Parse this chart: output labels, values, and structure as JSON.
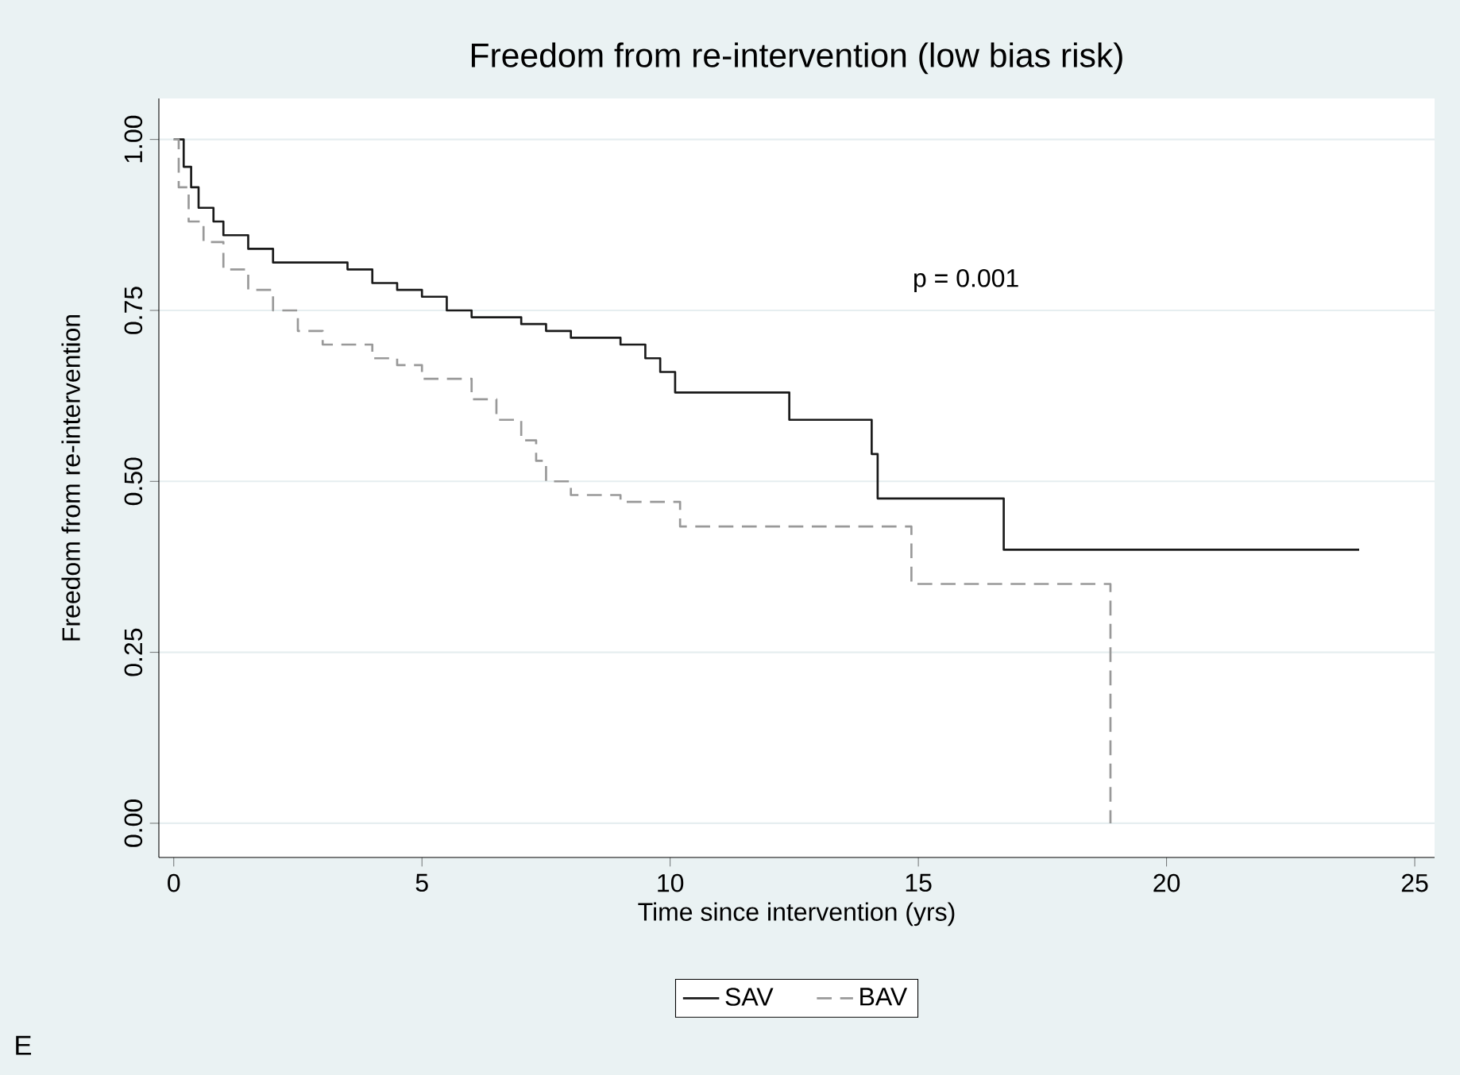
{
  "chart_data": {
    "type": "step",
    "title": "Freedom from re-intervention (low bias risk)",
    "xlabel": "Time since intervention (yrs)",
    "ylabel": "Freedom from re-intervention",
    "annotations": [
      "p = 0.001",
      "E"
    ],
    "xlim": [
      -0.3,
      25.4
    ],
    "ylim": [
      -0.05,
      1.06
    ],
    "xticks": [
      0,
      5,
      10,
      15,
      20,
      25
    ],
    "yticks": [
      {
        "value": 0,
        "label": "0.00"
      },
      {
        "value": 0.25,
        "label": "0.25"
      },
      {
        "value": 0.5,
        "label": "0.50"
      },
      {
        "value": 0.75,
        "label": "0.75"
      },
      {
        "value": 1,
        "label": "1.00"
      }
    ],
    "grid": "y",
    "legend": "bottom",
    "series": [
      {
        "name": "SAV",
        "color": "#1a1a1a",
        "line_style": "solid",
        "x": [
          0,
          0.2,
          0.35,
          0.5,
          0.8,
          1,
          1.5,
          2,
          3.5,
          4,
          4.5,
          5,
          5.5,
          6,
          7,
          7.5,
          8,
          9,
          9.5,
          9.8,
          10.1,
          12.4,
          14.06,
          14.18,
          16.72,
          23.88
        ],
        "values": [
          1,
          0.96,
          0.93,
          0.9,
          0.88,
          0.86,
          0.84,
          0.82,
          0.81,
          0.79,
          0.78,
          0.77,
          0.75,
          0.74,
          0.73,
          0.72,
          0.71,
          0.7,
          0.68,
          0.66,
          0.63,
          0.59,
          0.54,
          0.475,
          0.4,
          0.4
        ]
      },
      {
        "name": "BAV",
        "color": "#999999",
        "line_style": "dashed",
        "x": [
          0,
          0.1,
          0.3,
          0.6,
          1,
          1.5,
          2,
          2.5,
          3,
          4,
          4.5,
          5,
          6,
          6.5,
          7,
          7.3,
          7.5,
          8,
          9,
          10.2,
          14.86,
          18.87
        ],
        "values": [
          1,
          0.93,
          0.88,
          0.85,
          0.81,
          0.78,
          0.75,
          0.72,
          0.7,
          0.68,
          0.67,
          0.65,
          0.62,
          0.59,
          0.56,
          0.53,
          0.5,
          0.48,
          0.47,
          0.434,
          0.35,
          0
        ]
      }
    ]
  }
}
